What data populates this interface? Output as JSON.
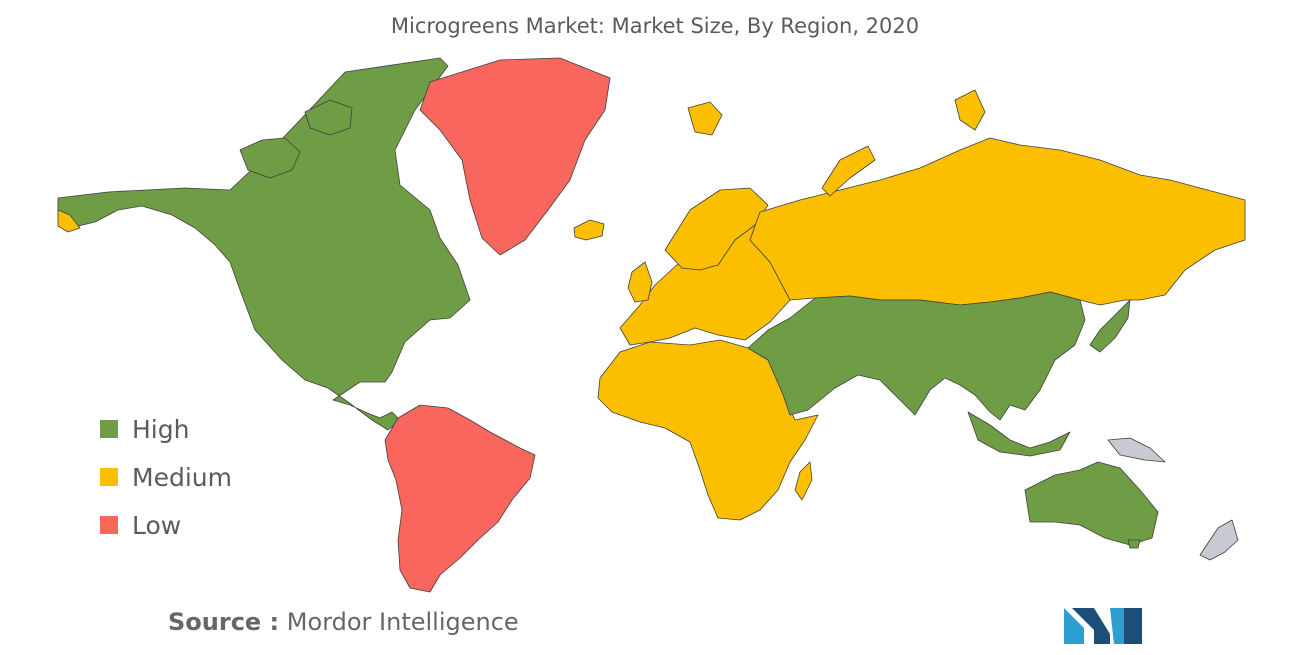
{
  "title": "Microgreens Market: Market Size, By Region, 2020",
  "legend": [
    {
      "label": "High",
      "color": "#6f9d45"
    },
    {
      "label": "Medium",
      "color": "#fbbf00"
    },
    {
      "label": "Low",
      "color": "#f9665e"
    }
  ],
  "no_data_color": "#c7cad0",
  "regions": {
    "north_america": "High",
    "south_america": "Low",
    "greenland": "Low",
    "europe": "Medium",
    "russia": "Medium",
    "africa": "Medium",
    "middle_east": "High",
    "asia": "High",
    "australia": "High",
    "new_guinea": "No data",
    "new_zealand": "No data"
  },
  "source": {
    "label": "Source :",
    "value": "Mordor Intelligence"
  },
  "logo": {
    "name": "mordor-intelligence-logo",
    "colors": [
      "#2a9fd0",
      "#1d4e7a"
    ]
  }
}
